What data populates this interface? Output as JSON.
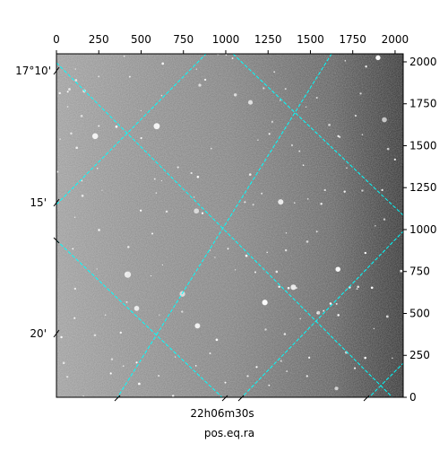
{
  "chart_data": {
    "type": "image",
    "xlim": [
      0,
      2048
    ],
    "xticks": [
      0,
      250,
      500,
      750,
      1000,
      1250,
      1500,
      1750,
      2000
    ],
    "ylim": [
      0,
      2048
    ],
    "yticks": [
      0,
      250,
      500,
      750,
      1000,
      1250,
      1500,
      1750,
      2000
    ],
    "dec_tick_labels": [
      "17°10'",
      "15'",
      "20'"
    ],
    "ra_tick_labels": [
      "22h06m30s"
    ],
    "xlabel": "pos.eq.ra",
    "grid": true,
    "grid_color": "#00ffff"
  }
}
